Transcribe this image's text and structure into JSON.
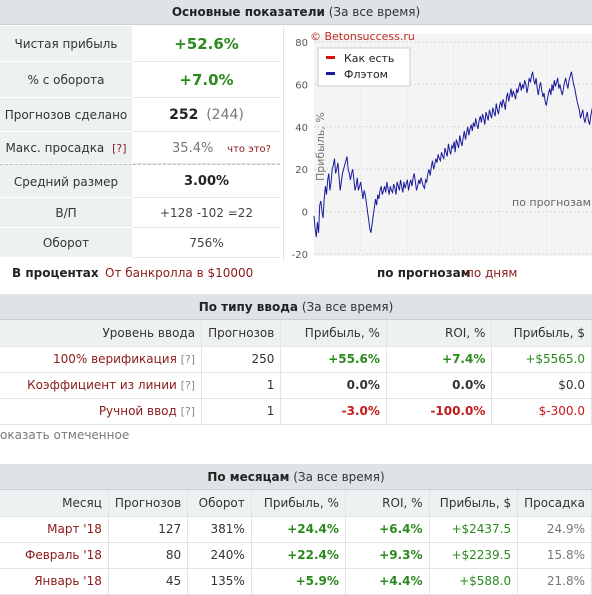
{
  "summary": {
    "title": "Основные показатели",
    "period": "(За все время)",
    "rows": [
      {
        "label": "Чистая прибыль",
        "value": "+52.6%"
      },
      {
        "label": "% с оборота",
        "value": "+7.0%"
      },
      {
        "label": "Прогнозов сделано",
        "value": "252",
        "extra": "(244)"
      },
      {
        "label": "Макс. просадка",
        "help": "[?]",
        "value": "35.4%",
        "extra": "что это?"
      },
      {
        "label": "Средний размер",
        "value": "3.00%"
      },
      {
        "label": "В/П",
        "value": "+128 -102 =22"
      },
      {
        "label": "Оборот",
        "value": "756%"
      }
    ],
    "footer": {
      "in_percent": "В процентах",
      "bankroll": "От банкролла в $10000",
      "by_forecasts": "по прогнозам",
      "by_days": "по дням"
    }
  },
  "chart_data": {
    "type": "line",
    "watermark": "© Betonsuccess.ru",
    "ylabel": "Прибыль, %",
    "xlabel": "по прогнозам",
    "ylim": [
      -20,
      80
    ],
    "yticks": [
      "80",
      "60",
      "40",
      "20",
      "0",
      "-20"
    ],
    "legend": [
      "Как есть",
      "Флэтом"
    ],
    "legend_colors": [
      "#d21010",
      "#1a1a9c"
    ],
    "grid": true,
    "series": [
      {
        "name": "Флэтом",
        "values": [
          -2,
          -8,
          -12,
          -5,
          -10,
          3,
          5,
          0,
          -3,
          6,
          12,
          8,
          15,
          18,
          10,
          14,
          20,
          22,
          25,
          18,
          20,
          23,
          16,
          10,
          14,
          18,
          20,
          22,
          24,
          26,
          20,
          18,
          15,
          18,
          20,
          15,
          10,
          12,
          16,
          10,
          12,
          14,
          10,
          6,
          10,
          8,
          4,
          0,
          -4,
          -8,
          -10,
          -6,
          -2,
          2,
          6,
          3,
          8,
          6,
          10,
          12,
          8,
          10,
          12,
          9,
          14,
          11,
          8,
          12,
          10,
          9,
          13,
          11,
          8,
          14,
          12,
          10,
          15,
          12,
          9,
          14,
          11,
          13,
          15,
          10,
          13,
          15,
          12,
          16,
          18,
          14,
          10,
          12,
          15,
          13,
          16,
          14,
          12,
          11,
          15,
          14,
          18,
          20,
          17,
          21,
          24,
          20,
          22,
          25,
          23,
          27,
          25,
          24,
          28,
          26,
          25,
          30,
          28,
          26,
          32,
          29,
          27,
          31,
          30,
          33,
          28,
          34,
          32,
          30,
          36,
          33,
          31,
          35,
          38,
          34,
          37,
          40,
          36,
          39,
          41,
          38,
          42,
          40,
          44,
          41,
          39,
          43,
          45,
          42,
          46,
          44,
          41,
          47,
          45,
          43,
          48,
          46,
          44,
          49,
          47,
          45,
          51,
          48,
          46,
          50,
          52,
          49,
          53,
          51,
          48,
          54,
          56,
          52,
          55,
          58,
          54,
          57,
          55,
          53,
          58,
          56,
          59,
          61,
          57,
          60,
          58,
          62,
          60,
          56,
          59,
          63,
          61,
          64,
          66,
          62,
          60,
          63,
          58,
          55,
          59,
          61,
          57,
          54,
          56,
          52,
          50,
          53,
          56,
          58,
          55,
          60,
          57,
          62,
          59,
          61,
          63,
          58,
          60,
          57,
          55,
          58,
          61,
          63,
          60,
          58,
          62,
          64,
          66,
          63,
          60,
          58,
          55,
          52,
          50,
          48,
          44,
          46,
          48,
          44,
          42,
          45,
          47,
          43,
          41,
          45,
          48,
          50
        ]
      }
    ]
  },
  "by_input": {
    "title": "По типу ввода",
    "period": "(За все время)",
    "columns": [
      "Уровень ввода",
      "Прогнозов",
      "Прибыль, %",
      "ROI, %",
      "Прибыль, $"
    ],
    "rows": [
      {
        "name": "100% верификация",
        "help": "[?]",
        "count": "250",
        "profit_pct": "+55.6%",
        "roi": "+7.4%",
        "profit_usd": "+$5565.0"
      },
      {
        "name": "Коэффициент из линии",
        "help": "[?]",
        "count": "1",
        "profit_pct": "0.0%",
        "roi": "0.0%",
        "profit_usd": "$0.0"
      },
      {
        "name": "Ручной ввод",
        "help": "[?]",
        "count": "1",
        "profit_pct": "-3.0%",
        "roi": "-100.0%",
        "profit_usd": "$-300.0"
      }
    ],
    "show_selected": "оказать отмеченное"
  },
  "by_month": {
    "title": "По месяцам",
    "period": "(За все время)",
    "columns": [
      "Месяц",
      "Прогнозов",
      "Оборот",
      "Прибыль, %",
      "ROI, %",
      "Прибыль, $",
      "Просадка"
    ],
    "rows": [
      {
        "month": "Март '18",
        "count": "127",
        "turnover": "381%",
        "profit_pct": "+24.4%",
        "roi": "+6.4%",
        "profit_usd": "+$2437.5",
        "drawdown": "24.9%"
      },
      {
        "month": "Февраль '18",
        "count": "80",
        "turnover": "240%",
        "profit_pct": "+22.4%",
        "roi": "+9.3%",
        "profit_usd": "+$2239.5",
        "drawdown": "15.8%"
      },
      {
        "month": "Январь '18",
        "count": "45",
        "turnover": "135%",
        "profit_pct": "+5.9%",
        "roi": "+4.4%",
        "profit_usd": "+$588.0",
        "drawdown": "21.8%"
      }
    ]
  }
}
